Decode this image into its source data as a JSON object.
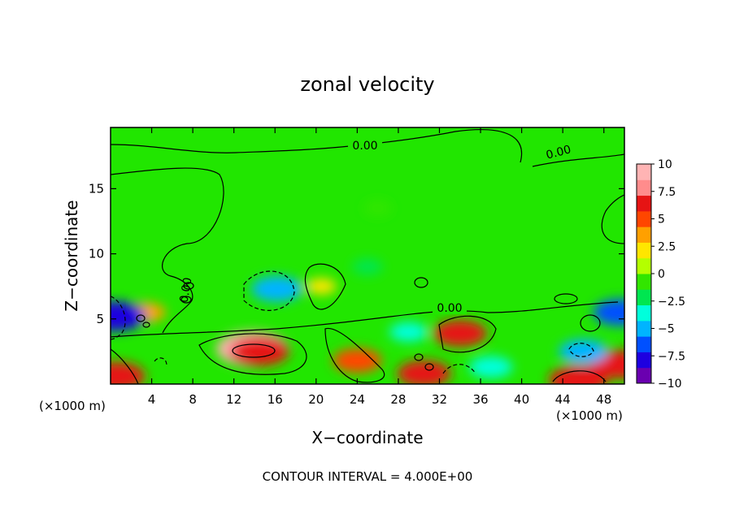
{
  "chart_data": {
    "type": "heatmap",
    "title": "zonal velocity",
    "xlabel": "X−coordinate",
    "ylabel": "Z−coordinate",
    "x_unit_left": "(×1000 m)",
    "x_unit_right": "(×1000 m)",
    "footer": "CONTOUR INTERVAL = 4.000E+00",
    "xlim": [
      0,
      50
    ],
    "ylim": [
      0,
      19.7
    ],
    "x_ticks": [
      4,
      8,
      12,
      16,
      20,
      24,
      28,
      32,
      36,
      40,
      44,
      48
    ],
    "y_ticks": [
      5,
      10,
      15
    ],
    "colorbar": {
      "range": [
        -10,
        10
      ],
      "tick_values": [
        10,
        7.5,
        5,
        2.5,
        0,
        -2.5,
        -5,
        -7.5,
        -10
      ],
      "tick_labels": [
        "10",
        "7.5",
        "5",
        "2.5",
        "0",
        "−2.5",
        "−5",
        "−7.5",
        "−10"
      ],
      "colors": [
        "#6a00b0",
        "#1e00e0",
        "#0050ff",
        "#00b4ff",
        "#00ffdc",
        "#00e650",
        "#32e600",
        "#b4ff00",
        "#ffe600",
        "#ffa000",
        "#ff4600",
        "#e61414",
        "#ff8c8c",
        "#ffb4b4"
      ]
    },
    "contour_labels": [
      "0.00",
      "0.00",
      "0.00",
      "0.00"
    ],
    "anomalies": [
      {
        "x": 13.8,
        "z": 2.7,
        "value": 9.5
      },
      {
        "x": 14.5,
        "z": 2.5,
        "value": 7
      },
      {
        "x": 34.0,
        "z": 3.9,
        "value": 6
      },
      {
        "x": 24.0,
        "z": 1.8,
        "value": 5
      },
      {
        "x": 45.5,
        "z": 0.3,
        "value": 7
      },
      {
        "x": 0.5,
        "z": 0.6,
        "value": 7
      },
      {
        "x": 49.5,
        "z": 1.5,
        "value": 7
      },
      {
        "x": 30.5,
        "z": 0.8,
        "value": 6
      },
      {
        "x": 3.5,
        "z": 5.5,
        "value": 3
      },
      {
        "x": 16.2,
        "z": 7.3,
        "value": -5.5
      },
      {
        "x": 0.4,
        "z": 5.2,
        "value": -7.5
      },
      {
        "x": 49.6,
        "z": 5.5,
        "value": -6
      },
      {
        "x": 46.0,
        "z": 2.5,
        "value": -5
      },
      {
        "x": 37.0,
        "z": 1.3,
        "value": -4
      },
      {
        "x": 29.0,
        "z": 4.0,
        "value": -3
      },
      {
        "x": 20.5,
        "z": 7.5,
        "value": 1.5
      },
      {
        "x": 25.0,
        "z": 9.0,
        "value": -1.5
      },
      {
        "x": 26.0,
        "z": 13.5,
        "value": -1.0
      }
    ]
  }
}
